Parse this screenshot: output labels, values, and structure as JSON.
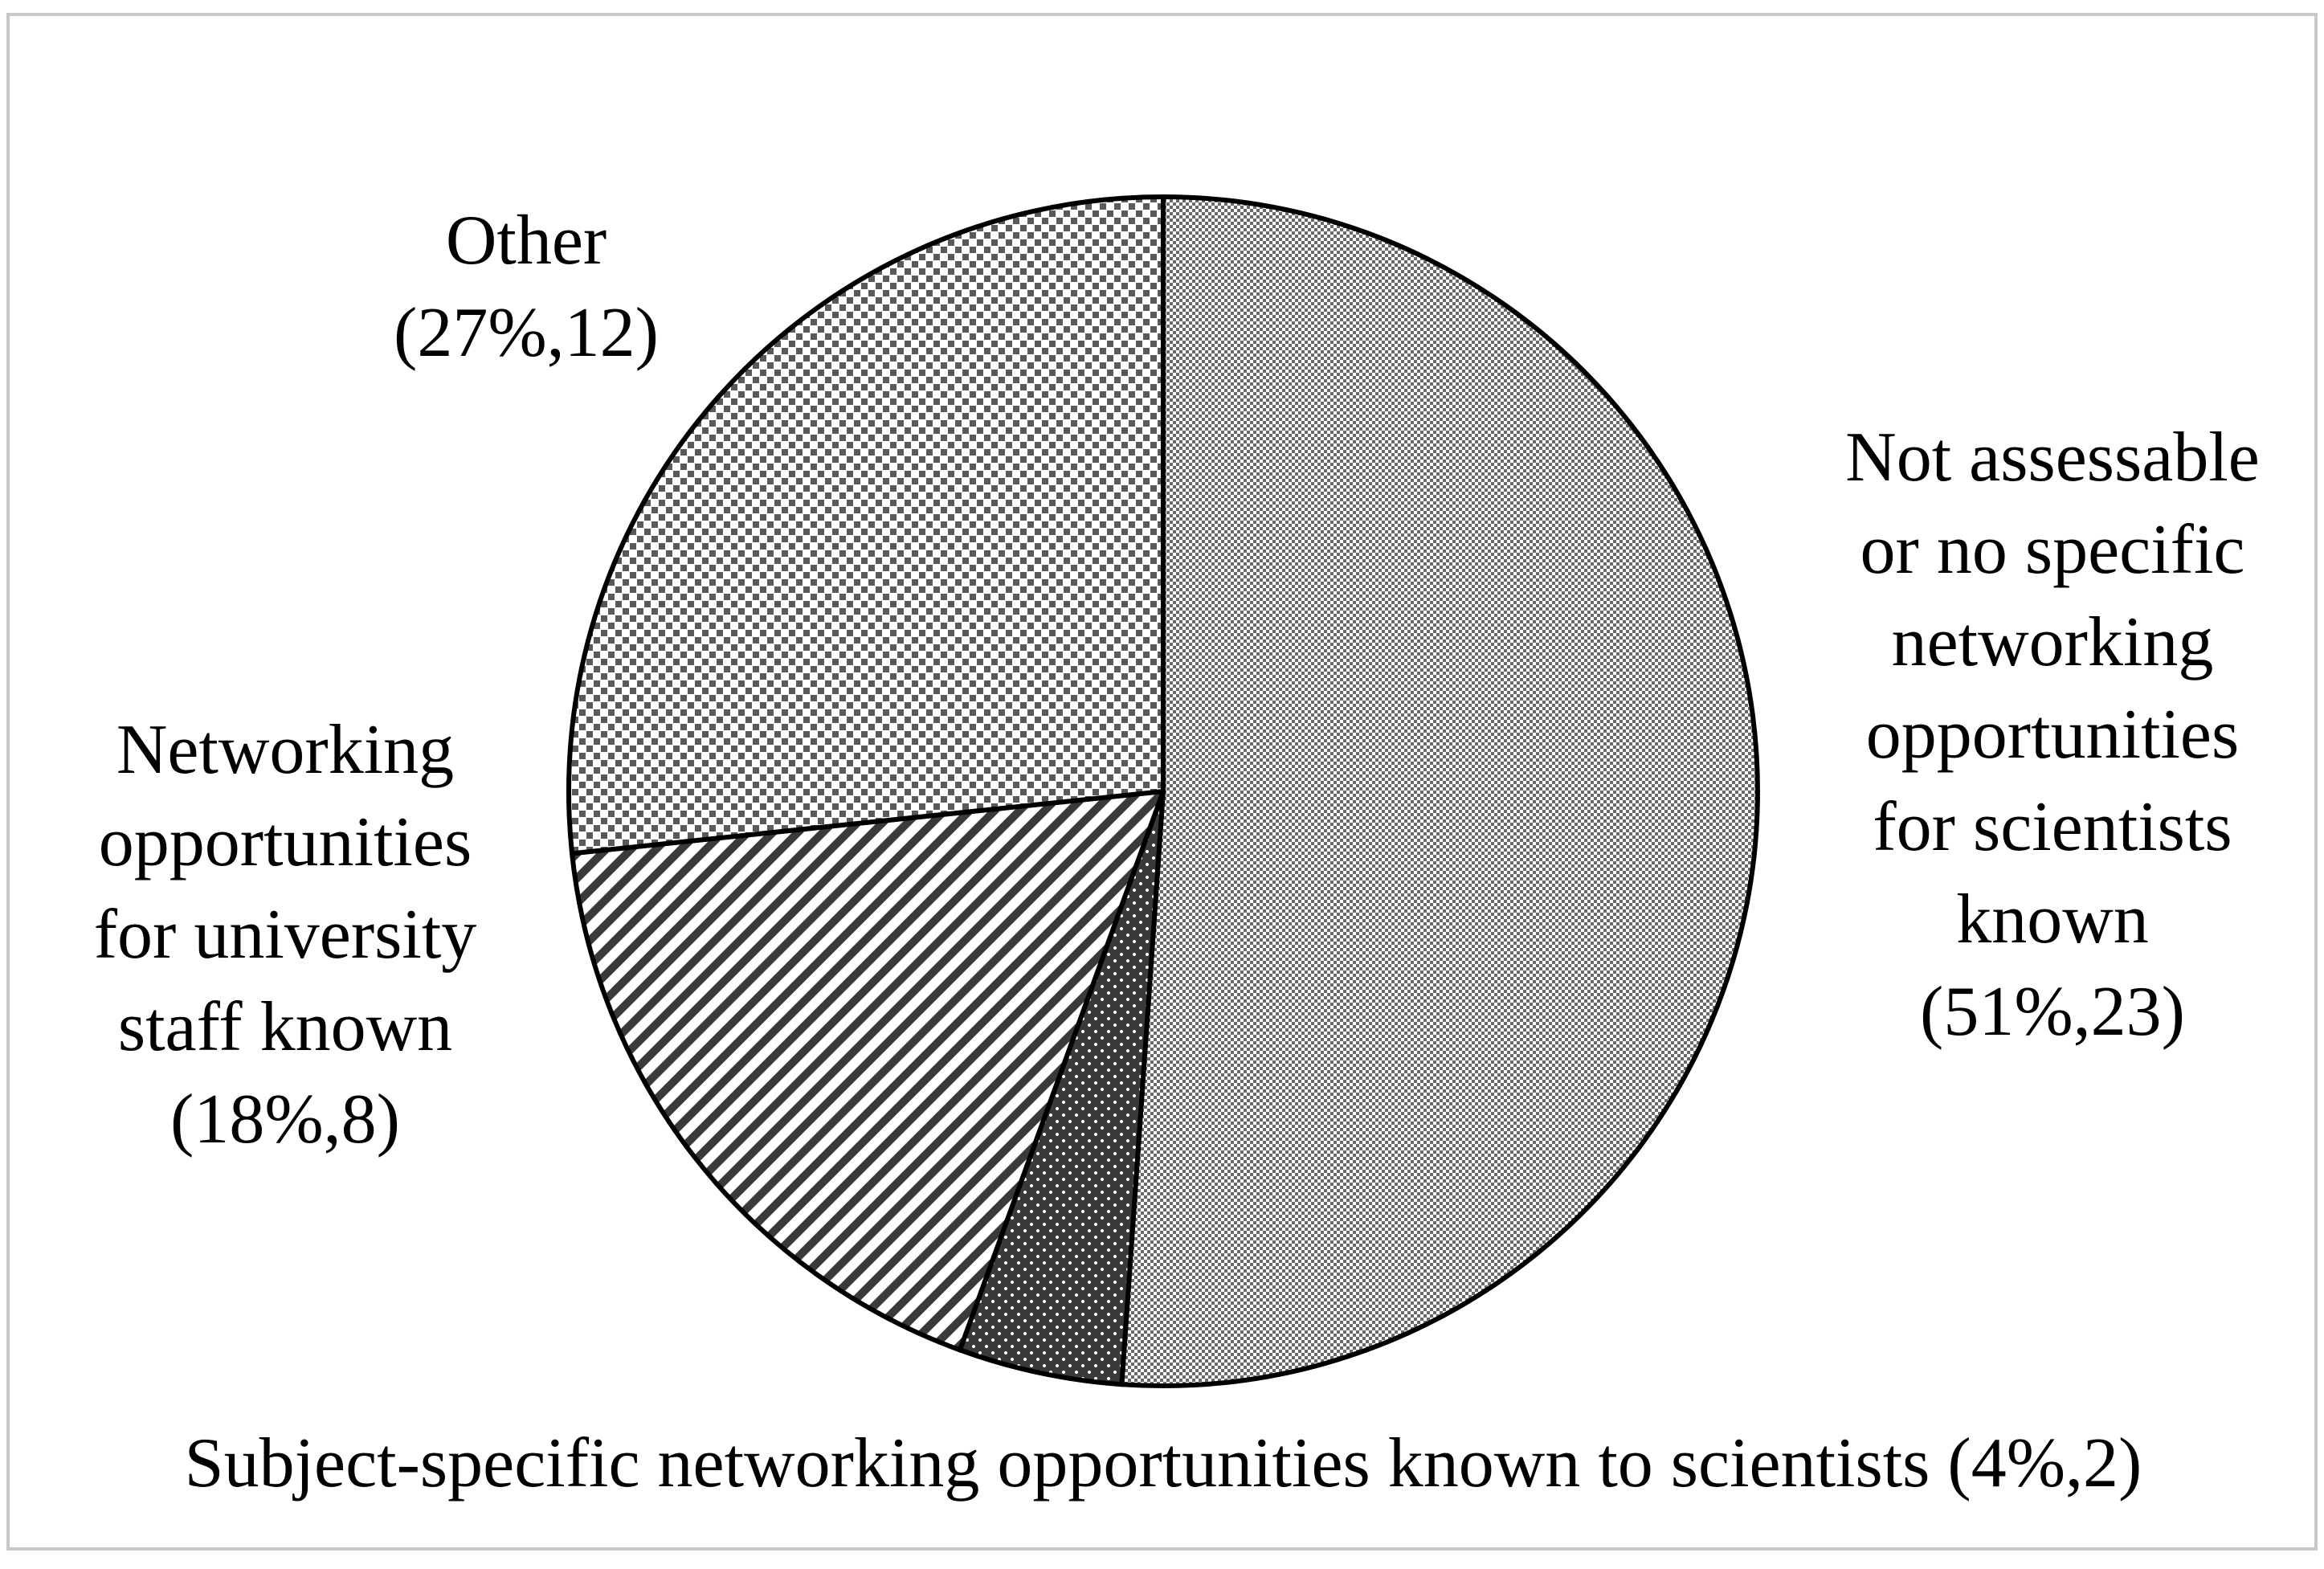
{
  "chart_data": {
    "type": "pie",
    "title": "",
    "start": "12 o'clock, clockwise",
    "slices": [
      {
        "name": "Not assessable or no specific networking opportunities for scientists known",
        "label_lines": [
          "Not assessable",
          "or no specific",
          "networking",
          "opportunities",
          "for scientists",
          "known",
          "(51%,23)"
        ],
        "percent": 51,
        "count": 23,
        "pattern": "fine-checker"
      },
      {
        "name": "Subject-specific networking opportunities known to scientists",
        "label_lines": [
          "Subject-specific networking opportunities known to scientists (4%,2)"
        ],
        "percent": 4,
        "count": 2,
        "pattern": "dark-dots"
      },
      {
        "name": "Networking opportunities for university staff known",
        "label_lines": [
          "Networking",
          "opportunities",
          "for university",
          "staff known",
          "(18%,8)"
        ],
        "percent": 18,
        "count": 8,
        "pattern": "diagonal-stripes"
      },
      {
        "name": "Other",
        "label_lines": [
          "Other",
          "(27%,12)"
        ],
        "percent": 27,
        "count": 12,
        "pattern": "small-squares"
      }
    ],
    "colors": {
      "outline": "#000000",
      "background": "#ffffff",
      "frame": "#c8c8c8"
    }
  }
}
